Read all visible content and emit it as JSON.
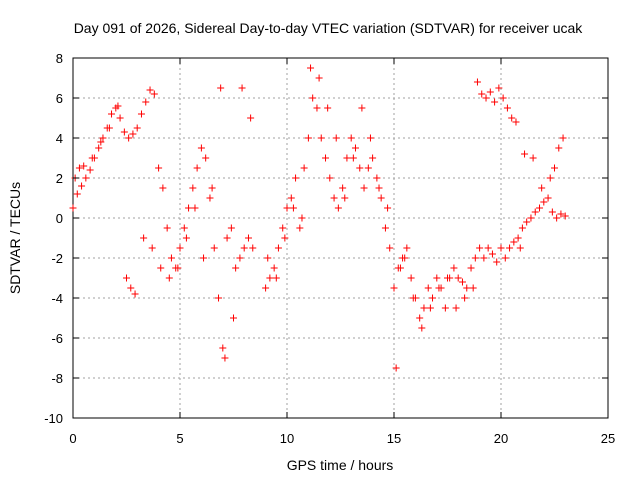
{
  "chart_data": {
    "type": "scatter",
    "title": "Day 091 of 2026, Sidereal Day-to-day VTEC variation (SDTVAR) for receiver ucak",
    "xlabel": "GPS time / hours",
    "ylabel": "SDTVAR / TECUs",
    "xlim": [
      0,
      25
    ],
    "ylim": [
      -10,
      8
    ],
    "xticks": [
      "0",
      "5",
      "10",
      "15",
      "20",
      "25"
    ],
    "xtick_values": [
      0,
      5,
      10,
      15,
      20,
      25
    ],
    "yticks": [
      "8",
      "6",
      "4",
      "2",
      "0",
      "-2",
      "-4",
      "-6",
      "-8",
      "-10"
    ],
    "ytick_values": [
      8,
      6,
      4,
      2,
      0,
      -2,
      -4,
      -6,
      -8,
      -10
    ],
    "grid": true,
    "marker": "+",
    "color": "#ff0000",
    "series": [
      {
        "name": "SDTVAR",
        "x": [
          0.0,
          0.2,
          0.4,
          0.6,
          0.8,
          1.0,
          1.2,
          1.4,
          1.6,
          1.8,
          2.0,
          2.2,
          2.4,
          2.6,
          2.8,
          3.0,
          3.2,
          3.4,
          3.6,
          3.8,
          4.0,
          4.2,
          4.4,
          4.6,
          4.8,
          5.0,
          5.2,
          5.4,
          5.6,
          5.8,
          6.0,
          6.2,
          6.4,
          6.6,
          6.8,
          7.0,
          7.2,
          7.4,
          7.6,
          7.8,
          8.0,
          8.2,
          8.4,
          9.0,
          9.2,
          9.4,
          9.6,
          9.8,
          10.0,
          10.2,
          10.4,
          10.6,
          10.8,
          11.0,
          11.2,
          11.4,
          11.6,
          11.8,
          12.0,
          12.2,
          12.4,
          12.6,
          12.8,
          13.0,
          13.2,
          13.4,
          13.6,
          13.8,
          14.0,
          14.2,
          14.4,
          14.6,
          14.8,
          15.0,
          15.2,
          15.4,
          15.6,
          15.8,
          16.0,
          16.2,
          16.4,
          16.6,
          16.8,
          17.0,
          17.2,
          17.4,
          17.6,
          17.8,
          18.0,
          18.2,
          18.4,
          18.6,
          18.8,
          19.0,
          19.2,
          19.4,
          19.6,
          19.8,
          20.0,
          20.2,
          20.4,
          20.6,
          20.8,
          21.0,
          21.2,
          21.4,
          21.6,
          21.8,
          22.0,
          22.2,
          22.4,
          22.6,
          22.8,
          23.0,
          0.1,
          0.3,
          0.5,
          0.9,
          1.3,
          1.7,
          2.1,
          2.5,
          2.7,
          2.9,
          3.3,
          3.7,
          4.1,
          4.5,
          4.9,
          5.3,
          5.7,
          6.1,
          6.5,
          6.9,
          7.1,
          7.5,
          7.9,
          8.3,
          9.1,
          9.5,
          9.9,
          10.3,
          10.7,
          11.1,
          11.5,
          11.9,
          12.3,
          12.7,
          13.1,
          13.5,
          13.9,
          14.3,
          14.7,
          15.1,
          15.3,
          15.5,
          15.9,
          16.3,
          16.7,
          17.1,
          17.5,
          17.9,
          18.3,
          18.7,
          18.9,
          19.1,
          19.3,
          19.5,
          19.7,
          19.9,
          20.1,
          20.3,
          20.5,
          20.7,
          20.9,
          21.1,
          21.5,
          21.9,
          22.3,
          22.5,
          22.7,
          22.9
        ],
        "y": [
          0.5,
          1.2,
          1.6,
          2.0,
          2.4,
          3.0,
          3.5,
          4.0,
          4.5,
          5.2,
          5.5,
          5.0,
          4.3,
          4.0,
          4.2,
          4.5,
          5.2,
          5.8,
          6.4,
          6.2,
          2.5,
          1.5,
          -0.5,
          -2.0,
          -2.5,
          -1.5,
          -0.5,
          0.5,
          1.5,
          2.5,
          3.5,
          3.0,
          1.0,
          -1.5,
          -4.0,
          -6.5,
          -1.0,
          -0.5,
          -2.5,
          -2.0,
          -1.5,
          -1.0,
          -1.5,
          -3.5,
          -3.0,
          -2.5,
          -1.5,
          -0.5,
          0.5,
          1.0,
          2.0,
          -0.5,
          2.5,
          4.0,
          6.0,
          5.5,
          4.0,
          3.0,
          2.0,
          1.0,
          0.5,
          1.5,
          3.0,
          4.0,
          3.5,
          2.5,
          1.5,
          2.5,
          3.0,
          2.0,
          1.0,
          -0.5,
          -1.5,
          -3.5,
          -2.5,
          -2.0,
          -1.5,
          -3.0,
          -4.0,
          -5.0,
          -4.5,
          -3.5,
          -4.0,
          -3.0,
          -3.5,
          -4.5,
          -3.0,
          -2.5,
          -3.0,
          -3.2,
          -3.5,
          -2.5,
          -2.0,
          -1.5,
          -2.0,
          -1.5,
          -1.8,
          -2.2,
          -1.5,
          -2.0,
          -1.5,
          -1.2,
          -1.0,
          -0.5,
          -0.2,
          0.0,
          0.3,
          0.5,
          0.8,
          1.0,
          0.3,
          0.0,
          0.2,
          0.1,
          2.0,
          2.5,
          2.6,
          3.0,
          3.8,
          4.5,
          5.6,
          -3.0,
          -3.5,
          -3.8,
          -1.0,
          -1.5,
          -2.5,
          -3.0,
          -2.5,
          -1.0,
          0.5,
          -2.0,
          1.5,
          6.5,
          -7.0,
          -5.0,
          6.5,
          5.0,
          -2.0,
          -3.0,
          -1.0,
          0.5,
          0.0,
          7.5,
          7.0,
          5.5,
          4.0,
          1.0,
          3.0,
          5.5,
          4.0,
          1.5,
          0.5,
          -7.5,
          -2.5,
          -2.0,
          -4.0,
          -5.5,
          -4.5,
          -3.5,
          -3.0,
          -4.5,
          -4.0,
          -3.5,
          6.8,
          6.2,
          6.0,
          6.3,
          5.8,
          6.5,
          6.0,
          5.5,
          5.0,
          4.8,
          -1.5,
          3.2,
          3.0,
          1.5,
          2.0,
          2.5,
          3.5,
          4.0
        ]
      }
    ]
  }
}
